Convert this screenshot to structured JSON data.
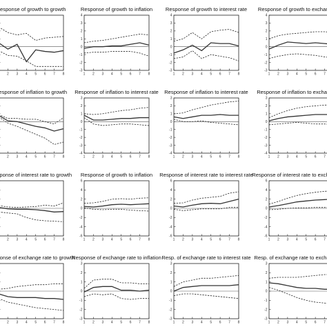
{
  "chart_data": [
    {
      "type": "line",
      "title": "Response of growth to growth",
      "x": [
        1,
        2,
        3,
        4,
        5,
        6,
        7,
        8
      ],
      "ylim": [
        -3,
        4
      ],
      "yticks": [
        -3,
        -2,
        -1,
        0,
        1,
        2,
        3,
        4
      ],
      "series": [
        {
          "values": [
            0.5,
            -0.3,
            0.3,
            -1.9,
            -0.4,
            -0.6,
            -0.7,
            -0.5
          ]
        },
        {
          "values": [
            2.5,
            1.8,
            1.5,
            1.7,
            0.8,
            1.1,
            1.2,
            1.3
          ]
        },
        {
          "values": [
            -0.5,
            -1.1,
            -1.2,
            -1.8,
            -2.5,
            -2.5,
            -2.5,
            -2.5
          ]
        }
      ]
    },
    {
      "type": "line",
      "title": "Response of growth to inflation",
      "x": [
        1,
        2,
        3,
        4,
        5,
        6,
        7,
        8
      ],
      "ylim": [
        -3,
        4
      ],
      "yticks": [
        -3,
        -2,
        -1,
        0,
        1,
        2,
        3,
        4
      ],
      "series": [
        {
          "values": [
            -0.2,
            0.0,
            0.0,
            0.1,
            0.1,
            0.3,
            0.5,
            0.2
          ]
        },
        {
          "values": [
            0.5,
            0.7,
            0.8,
            1.0,
            1.2,
            1.4,
            1.6,
            1.5
          ]
        },
        {
          "values": [
            -0.8,
            -0.7,
            -0.7,
            -0.6,
            -0.6,
            -0.6,
            -0.8,
            -1.2
          ]
        }
      ]
    },
    {
      "type": "line",
      "title": "Response of growth to interest rate",
      "x": [
        1,
        2,
        3,
        4,
        5,
        6,
        7,
        8
      ],
      "ylim": [
        -3,
        4
      ],
      "yticks": [
        -3,
        -2,
        -1,
        0,
        1,
        2,
        3,
        4
      ],
      "series": [
        {
          "values": [
            -0.8,
            -0.4,
            0.2,
            -0.5,
            0.5,
            0.4,
            0.4,
            0.1
          ]
        },
        {
          "values": [
            0.7,
            1.0,
            1.8,
            1.0,
            1.9,
            2.1,
            2.2,
            1.8
          ]
        },
        {
          "values": [
            -1.5,
            -1.3,
            -0.5,
            -1.5,
            -1.0,
            -1.2,
            -1.4,
            -1.8
          ]
        }
      ]
    },
    {
      "type": "line",
      "title": "Response of growth to exchange rate",
      "x": [
        1,
        2,
        3,
        4,
        5,
        6,
        7,
        8
      ],
      "ylim": [
        -3,
        4
      ],
      "yticks": [
        -3,
        -2,
        -1,
        0,
        1,
        2,
        3,
        4
      ],
      "series": [
        {
          "values": [
            -0.3,
            0.2,
            0.6,
            0.5,
            0.4,
            0.5,
            0.4,
            0.3
          ]
        },
        {
          "values": [
            1.0,
            1.4,
            1.6,
            1.7,
            1.8,
            1.9,
            1.9,
            1.8
          ]
        },
        {
          "values": [
            -1.5,
            -1.2,
            -1.0,
            -0.9,
            -1.0,
            -1.1,
            -1.3,
            -1.4
          ]
        }
      ]
    },
    {
      "type": "line",
      "title": "Response of inflation to growth",
      "x": [
        1,
        2,
        3,
        4,
        5,
        6,
        7,
        8
      ],
      "ylim": [
        -4,
        3
      ],
      "yticks": [
        -4,
        -3,
        -2,
        -1,
        0,
        1,
        2,
        3
      ],
      "series": [
        {
          "values": [
            0.8,
            0.1,
            0.0,
            -0.3,
            -0.6,
            -0.8,
            -1.2,
            -0.9
          ]
        },
        {
          "values": [
            0.9,
            0.4,
            0.4,
            0.3,
            0.3,
            0.0,
            -0.3,
            0.5
          ]
        },
        {
          "values": [
            0.6,
            -0.2,
            -0.6,
            -1.1,
            -1.6,
            -2.1,
            -2.9,
            -2.6
          ]
        }
      ]
    },
    {
      "type": "line",
      "title": "Response of inflation to interest rate",
      "x": [
        1,
        2,
        3,
        4,
        5,
        6,
        7,
        8
      ],
      "ylim": [
        -4,
        3
      ],
      "yticks": [
        -4,
        -3,
        -2,
        -1,
        0,
        1,
        2,
        3
      ],
      "series": [
        {
          "values": [
            0.8,
            0.2,
            0.2,
            0.3,
            0.4,
            0.4,
            0.5,
            0.5
          ]
        },
        {
          "values": [
            1.0,
            0.9,
            1.0,
            1.2,
            1.4,
            1.5,
            1.7,
            1.8
          ]
        },
        {
          "values": [
            0.5,
            -0.3,
            -0.5,
            -0.4,
            -0.3,
            -0.3,
            -0.4,
            -0.5
          ]
        }
      ]
    },
    {
      "type": "line",
      "title": "Response of inflation to interest rate",
      "x": [
        1,
        2,
        3,
        4,
        5,
        6,
        7,
        8
      ],
      "ylim": [
        -4,
        3
      ],
      "yticks": [
        -4,
        -3,
        -2,
        -1,
        0,
        1,
        2,
        3
      ],
      "series": [
        {
          "values": [
            0.6,
            0.4,
            0.6,
            0.8,
            0.8,
            0.9,
            0.8,
            0.8
          ]
        },
        {
          "values": [
            1.0,
            1.1,
            1.5,
            1.8,
            2.1,
            2.3,
            2.5,
            2.6
          ]
        },
        {
          "values": [
            0.3,
            0.0,
            0.0,
            0.1,
            -0.1,
            -0.2,
            -0.3,
            -0.4
          ]
        }
      ]
    },
    {
      "type": "line",
      "title": "Response of inflation to exchange rate",
      "x": [
        1,
        2,
        3,
        4,
        5,
        6,
        7,
        8
      ],
      "ylim": [
        -4,
        3
      ],
      "yticks": [
        -4,
        -3,
        -2,
        -1,
        0,
        1,
        2,
        3
      ],
      "series": [
        {
          "values": [
            0.1,
            0.4,
            0.6,
            0.7,
            0.8,
            0.9,
            0.9,
            0.9
          ]
        },
        {
          "values": [
            0.5,
            1.0,
            1.4,
            1.7,
            1.9,
            2.0,
            2.1,
            2.1
          ]
        },
        {
          "values": [
            -0.4,
            -0.3,
            -0.2,
            -0.1,
            -0.2,
            -0.3,
            -0.3,
            -0.4
          ]
        }
      ]
    },
    {
      "type": "line",
      "title": "Response of interest rate to growth",
      "x": [
        1,
        2,
        3,
        4,
        5,
        6,
        7,
        8
      ],
      "ylim": [
        -6,
        6
      ],
      "yticks": [
        -6,
        -4,
        -2,
        0,
        2,
        4,
        6
      ],
      "series": [
        {
          "values": [
            0.2,
            -0.1,
            -0.2,
            -0.2,
            -0.3,
            -0.5,
            -0.8,
            -0.7
          ]
        },
        {
          "values": [
            0.6,
            0.3,
            0.2,
            0.3,
            0.4,
            0.7,
            0.5,
            1.2
          ]
        },
        {
          "values": [
            -0.8,
            -1.0,
            -1.2,
            -2.0,
            -2.5,
            -2.7,
            -2.8,
            -2.9
          ]
        }
      ]
    },
    {
      "type": "line",
      "title": "Response of growth to inflation",
      "x": [
        1,
        2,
        3,
        4,
        5,
        6,
        7,
        8
      ],
      "ylim": [
        -6,
        6
      ],
      "yticks": [
        -6,
        -4,
        -2,
        0,
        2,
        4,
        6
      ],
      "series": [
        {
          "values": [
            0.4,
            0.3,
            0.5,
            0.8,
            0.9,
            0.8,
            0.9,
            1.0
          ]
        },
        {
          "values": [
            1.1,
            1.2,
            1.5,
            2.0,
            2.1,
            2.0,
            2.2,
            2.3
          ]
        },
        {
          "values": [
            0.1,
            -0.2,
            -0.3,
            -0.2,
            -0.2,
            -0.4,
            -0.5,
            -0.6
          ]
        }
      ]
    },
    {
      "type": "line",
      "title": "Response of interest rate to interest rate",
      "x": [
        1,
        2,
        3,
        4,
        5,
        6,
        7,
        8
      ],
      "ylim": [
        -6,
        6
      ],
      "yticks": [
        -6,
        -4,
        -2,
        0,
        2,
        4,
        6
      ],
      "series": [
        {
          "values": [
            0.5,
            0.3,
            0.7,
            1.0,
            1.1,
            1.0,
            1.5,
            2.0
          ]
        },
        {
          "values": [
            1.1,
            1.2,
            1.8,
            2.2,
            2.4,
            2.6,
            3.3,
            3.6
          ]
        },
        {
          "values": [
            -0.2,
            -0.5,
            -0.3,
            -0.1,
            -0.1,
            -0.1,
            0.2,
            0.2
          ]
        }
      ]
    },
    {
      "type": "line",
      "title": "Response of interest rate to exchange rate",
      "x": [
        1,
        2,
        3,
        4,
        5,
        6,
        7,
        8
      ],
      "ylim": [
        -6,
        6
      ],
      "yticks": [
        -6,
        -4,
        -2,
        0,
        2,
        4,
        6
      ],
      "series": [
        {
          "values": [
            0.3,
            0.6,
            1.0,
            1.4,
            1.6,
            1.8,
            1.9,
            2.0
          ]
        },
        {
          "values": [
            0.9,
            1.5,
            2.2,
            2.8,
            3.2,
            3.5,
            3.7,
            3.8
          ]
        },
        {
          "values": [
            -0.3,
            -0.2,
            0.0,
            0.1,
            0.1,
            0.2,
            0.2,
            0.2
          ]
        }
      ]
    },
    {
      "type": "line",
      "title": "Response of exchange rate to growth",
      "x": [
        1,
        2,
        3,
        4,
        5,
        6,
        7,
        8
      ],
      "ylim": [
        -3,
        3
      ],
      "yticks": [
        -3,
        -2,
        -1,
        0,
        1,
        2,
        3
      ],
      "series": [
        {
          "values": [
            -0.3,
            -0.6,
            -0.7,
            -0.7,
            -0.7,
            -0.8,
            -0.8,
            -0.9
          ]
        },
        {
          "values": [
            0.2,
            0.3,
            0.5,
            0.6,
            0.7,
            0.7,
            0.8,
            0.8
          ]
        },
        {
          "values": [
            -0.8,
            -1.2,
            -1.4,
            -1.6,
            -1.8,
            -1.9,
            -2.0,
            -2.1
          ]
        }
      ]
    },
    {
      "type": "line",
      "title": "Response of exchange rate to inflation",
      "x": [
        1,
        2,
        3,
        4,
        5,
        6,
        7,
        8
      ],
      "ylim": [
        -3,
        3
      ],
      "yticks": [
        -3,
        -2,
        -1,
        0,
        1,
        2,
        3
      ],
      "series": [
        {
          "values": [
            -0.1,
            0.4,
            0.5,
            0.5,
            0.1,
            0.1,
            0.0,
            0.1
          ]
        },
        {
          "values": [
            0.3,
            1.2,
            1.3,
            1.3,
            0.9,
            0.9,
            0.8,
            0.8
          ]
        },
        {
          "values": [
            -0.6,
            -0.3,
            -0.4,
            -0.3,
            -0.8,
            -0.9,
            -0.8,
            -0.8
          ]
        }
      ]
    },
    {
      "type": "line",
      "title": "Resp. of exchange rate to interest rate",
      "x": [
        1,
        2,
        3,
        4,
        5,
        6,
        7,
        8
      ],
      "ylim": [
        -3,
        3
      ],
      "yticks": [
        -3,
        -2,
        -1,
        0,
        1,
        2,
        3
      ],
      "series": [
        {
          "values": [
            0.0,
            0.4,
            0.5,
            0.6,
            0.6,
            0.6,
            0.6,
            0.7
          ]
        },
        {
          "values": [
            0.5,
            1.0,
            1.2,
            1.4,
            1.4,
            1.5,
            1.6,
            1.7
          ]
        },
        {
          "values": [
            -0.5,
            -0.3,
            -0.3,
            -0.4,
            -0.5,
            -0.6,
            -0.7,
            -0.8
          ]
        }
      ]
    },
    {
      "type": "line",
      "title": "Resp. of exchange rate to exchange rate",
      "x": [
        1,
        2,
        3,
        4,
        5,
        6,
        7,
        8
      ],
      "ylim": [
        -3,
        3
      ],
      "yticks": [
        -3,
        -2,
        -1,
        0,
        1,
        2,
        3
      ],
      "series": [
        {
          "values": [
            0.9,
            0.8,
            0.6,
            0.4,
            0.3,
            0.3,
            0.2,
            0.2
          ]
        },
        {
          "values": [
            1.4,
            1.5,
            1.5,
            1.5,
            1.6,
            1.7,
            1.8,
            1.8
          ]
        },
        {
          "values": [
            0.4,
            0.1,
            -0.3,
            -0.7,
            -1.0,
            -1.2,
            -1.3,
            -1.4
          ]
        }
      ]
    }
  ]
}
